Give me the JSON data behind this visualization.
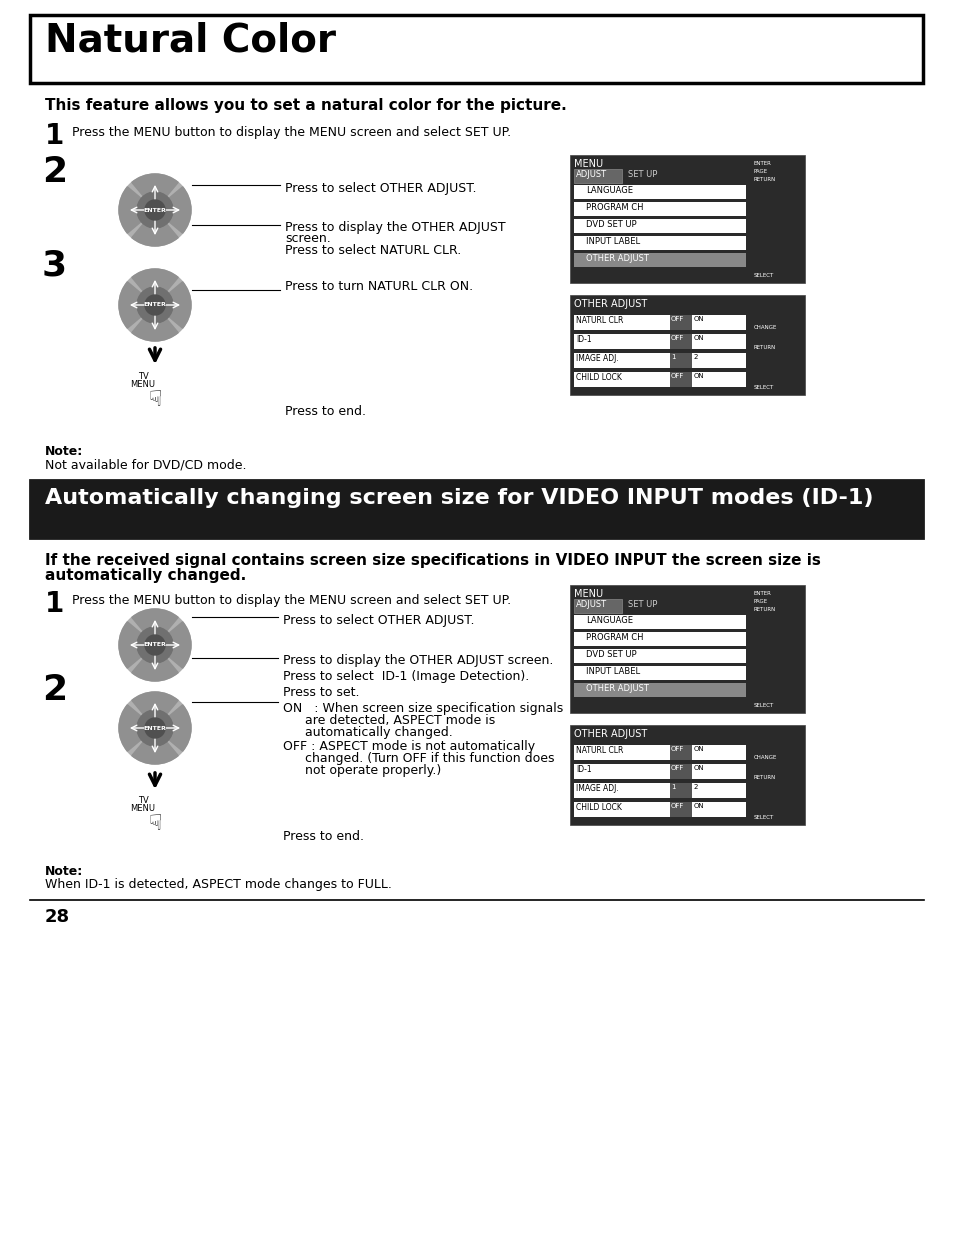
{
  "bg_color": "#ffffff",
  "title1": "Natural Color",
  "title2": "Automatically changing screen size for VIDEO INPUT modes (ID-1)",
  "section1_subtitle": "This feature allows you to set a natural color for the picture.",
  "section2_sub1": "If the received signal contains screen size specifications in VIDEO INPUT the screen size is",
  "section2_sub2": "automatically changed.",
  "step_text": "Press the MENU button to display the MENU screen and select SET UP.",
  "note1_title": "Note:",
  "note1_body": "Not available for DVD/CD mode.",
  "note2_title": "Note:",
  "note2_body": "When ID-1 is detected, ASPECT mode changes to FULL.",
  "page_number": "28",
  "menu_items": [
    "LANGUAGE",
    "PROGRAM CH",
    "DVD SET UP",
    "INPUT LABEL",
    "OTHER ADJUST"
  ],
  "oa_items": [
    [
      "NATURL CLR",
      "OFF",
      "ON"
    ],
    [
      "ID-1",
      "OFF",
      "ON"
    ],
    [
      "IMAGE ADJ.",
      "1",
      "2"
    ],
    [
      "CHILD LOCK",
      "OFF",
      "ON"
    ]
  ]
}
